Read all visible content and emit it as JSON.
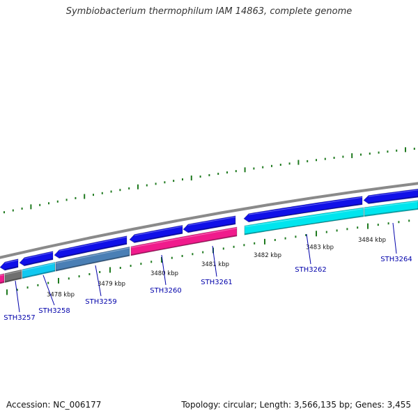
{
  "title": "Symbiobacterium thermophilum IAM 14863, complete genome",
  "footer": {
    "accession": "Accession: NC_006177",
    "summary": "Topology: circular; Length: 3,566,135 bp; Genes: 3,455"
  },
  "colors": {
    "backbone": "#8a8a8a",
    "tick": "#1f7a1f",
    "forward_gene": "#1010e8",
    "cyan_gene": "#00e5ee",
    "skyblue_gene": "#10c8f0",
    "steel_gene": "#4a7fb5",
    "pink_gene": "#f01b8c",
    "grey_gene": "#707070",
    "label": "#0000aa"
  },
  "coordinate_labels": [
    {
      "text": "3478 kbp",
      "kbp": 3478
    },
    {
      "text": "3479 kbp",
      "kbp": 3479
    },
    {
      "text": "3480 kbp",
      "kbp": 3480
    },
    {
      "text": "3481 kbp",
      "kbp": 3481
    },
    {
      "text": "3482 kbp",
      "kbp": 3482
    },
    {
      "text": "3483 kbp",
      "kbp": 3483
    },
    {
      "text": "3484 kbp",
      "kbp": 3484
    }
  ],
  "gene_labels": [
    "STH3257",
    "STH3258",
    "STH3259",
    "STH3260",
    "STH3261",
    "STH3262",
    "STH3264"
  ]
}
